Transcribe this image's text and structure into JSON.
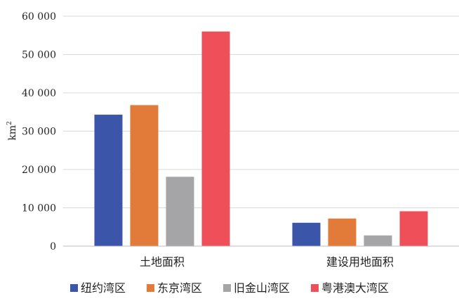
{
  "chart_data": {
    "type": "bar",
    "categories": [
      "土地面积",
      "建设用地面积"
    ],
    "series": [
      {
        "name": "纽约湾区",
        "color": "#3b55a8",
        "values": [
          34300,
          6100
        ]
      },
      {
        "name": "东京湾区",
        "color": "#e27a3a",
        "values": [
          36800,
          7200
        ]
      },
      {
        "name": "旧金山湾区",
        "color": "#a5a5a8",
        "values": [
          18100,
          2800
        ]
      },
      {
        "name": "粤港澳大湾区",
        "color": "#ee4f58",
        "values": [
          56000,
          9100
        ]
      }
    ],
    "ylabel": "km",
    "ylabel_superscript": "2",
    "ylim": [
      0,
      60000
    ],
    "yticks": [
      0,
      10000,
      20000,
      30000,
      40000,
      50000,
      60000
    ],
    "ytick_labels": [
      "0",
      "10 000",
      "20 000",
      "30 000",
      "40 000",
      "50 000",
      "60 000"
    ],
    "grid": true,
    "legend_position": "bottom"
  }
}
